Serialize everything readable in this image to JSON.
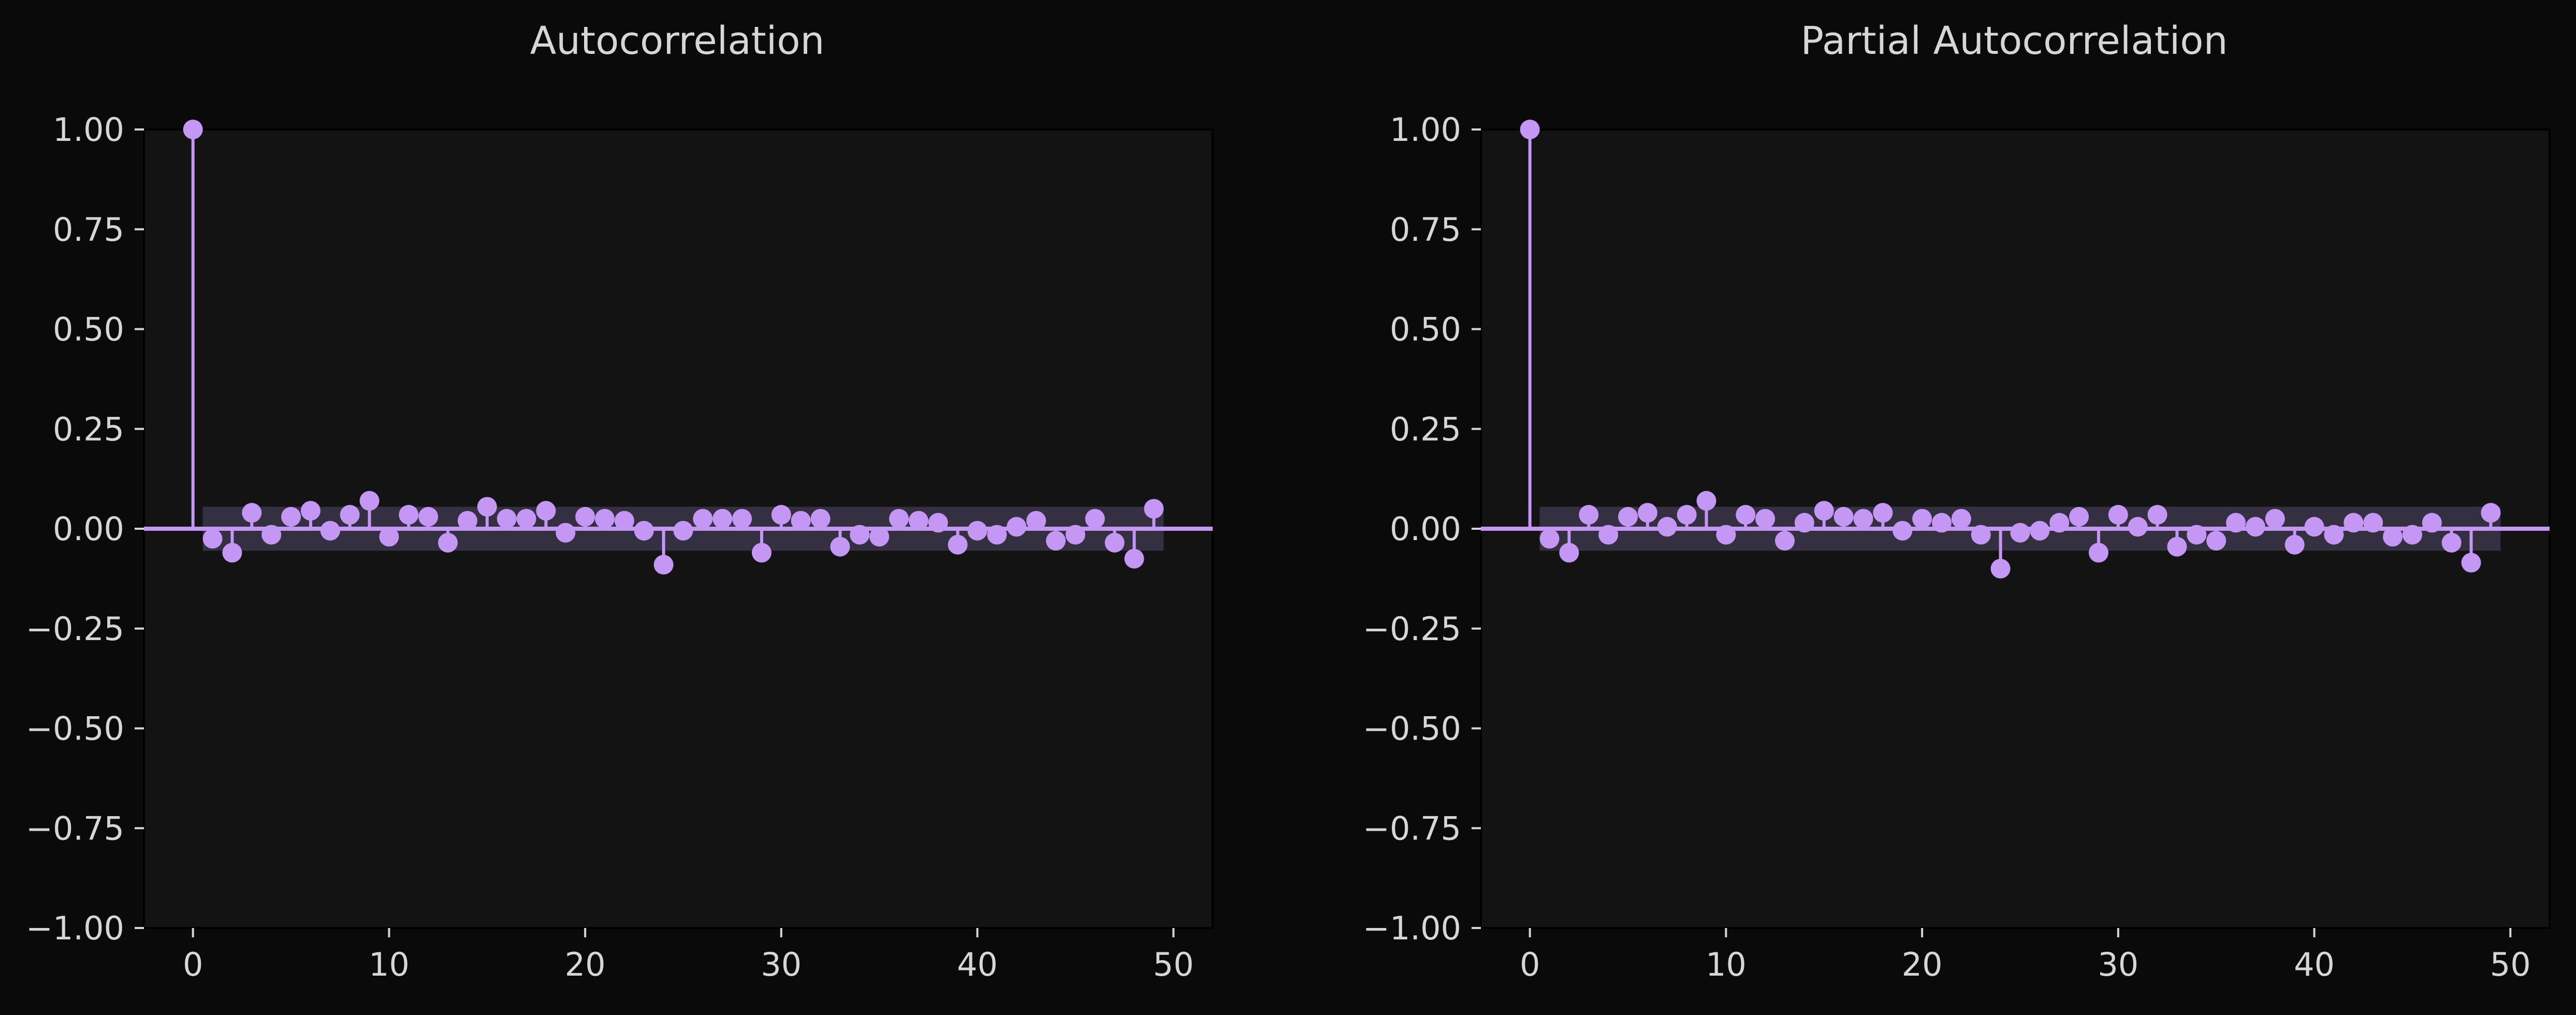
{
  "theme": {
    "background": "#0a0a0b",
    "plot_background": "#131314",
    "accent": "#c497f5",
    "band": "#3a3347",
    "text": "#d6d6d6"
  },
  "chart_data": [
    {
      "type": "stem",
      "title": "Autocorrelation",
      "xlabel": "",
      "ylabel": "",
      "xlim": [
        -2.5,
        52
      ],
      "ylim": [
        -1.0,
        1.0
      ],
      "x_ticks": [
        0,
        10,
        20,
        30,
        40,
        50
      ],
      "y_ticks": [
        -1.0,
        -0.75,
        -0.5,
        -0.25,
        0.0,
        0.25,
        0.5,
        0.75,
        1.0
      ],
      "x_tick_labels": [
        "0",
        "10",
        "20",
        "30",
        "40",
        "50"
      ],
      "y_tick_labels": [
        "−1.00",
        "−0.75",
        "−0.50",
        "−0.25",
        "0.00",
        "0.25",
        "0.50",
        "0.75",
        "1.00"
      ],
      "confidence_band": 0.055,
      "lags": [
        0,
        1,
        2,
        3,
        4,
        5,
        6,
        7,
        8,
        9,
        10,
        11,
        12,
        13,
        14,
        15,
        16,
        17,
        18,
        19,
        20,
        21,
        22,
        23,
        24,
        25,
        26,
        27,
        28,
        29,
        30,
        31,
        32,
        33,
        34,
        35,
        36,
        37,
        38,
        39,
        40,
        41,
        42,
        43,
        44,
        45,
        46,
        47,
        48,
        49
      ],
      "values": [
        1.0,
        -0.025,
        -0.06,
        0.04,
        -0.015,
        0.03,
        0.045,
        -0.005,
        0.035,
        0.07,
        -0.02,
        0.035,
        0.03,
        -0.035,
        0.02,
        0.055,
        0.025,
        0.025,
        0.045,
        -0.01,
        0.03,
        0.025,
        0.02,
        -0.005,
        -0.09,
        -0.005,
        0.025,
        0.025,
        0.025,
        -0.06,
        0.035,
        0.02,
        0.025,
        -0.045,
        -0.015,
        -0.02,
        0.025,
        0.02,
        0.015,
        -0.04,
        -0.005,
        -0.015,
        0.005,
        0.02,
        -0.03,
        -0.015,
        0.025,
        -0.035,
        -0.075,
        0.05
      ]
    },
    {
      "type": "stem",
      "title": "Partial Autocorrelation",
      "xlabel": "",
      "ylabel": "",
      "xlim": [
        -2.5,
        52
      ],
      "ylim": [
        -1.0,
        1.0
      ],
      "x_ticks": [
        0,
        10,
        20,
        30,
        40,
        50
      ],
      "y_ticks": [
        -1.0,
        -0.75,
        -0.5,
        -0.25,
        0.0,
        0.25,
        0.5,
        0.75,
        1.0
      ],
      "x_tick_labels": [
        "0",
        "10",
        "20",
        "30",
        "40",
        "50"
      ],
      "y_tick_labels": [
        "−1.00",
        "−0.75",
        "−0.50",
        "−0.25",
        "0.00",
        "0.25",
        "0.50",
        "0.75",
        "1.00"
      ],
      "confidence_band": 0.055,
      "lags": [
        0,
        1,
        2,
        3,
        4,
        5,
        6,
        7,
        8,
        9,
        10,
        11,
        12,
        13,
        14,
        15,
        16,
        17,
        18,
        19,
        20,
        21,
        22,
        23,
        24,
        25,
        26,
        27,
        28,
        29,
        30,
        31,
        32,
        33,
        34,
        35,
        36,
        37,
        38,
        39,
        40,
        41,
        42,
        43,
        44,
        45,
        46,
        47,
        48,
        49
      ],
      "values": [
        1.0,
        -0.025,
        -0.06,
        0.035,
        -0.015,
        0.03,
        0.04,
        0.005,
        0.035,
        0.07,
        -0.015,
        0.035,
        0.025,
        -0.03,
        0.015,
        0.045,
        0.03,
        0.025,
        0.04,
        -0.005,
        0.025,
        0.015,
        0.025,
        -0.015,
        -0.1,
        -0.01,
        -0.005,
        0.015,
        0.03,
        -0.06,
        0.035,
        0.005,
        0.035,
        -0.045,
        -0.015,
        -0.03,
        0.015,
        0.005,
        0.025,
        -0.04,
        0.005,
        -0.015,
        0.015,
        0.015,
        -0.02,
        -0.015,
        0.015,
        -0.035,
        -0.085,
        0.04
      ]
    }
  ]
}
